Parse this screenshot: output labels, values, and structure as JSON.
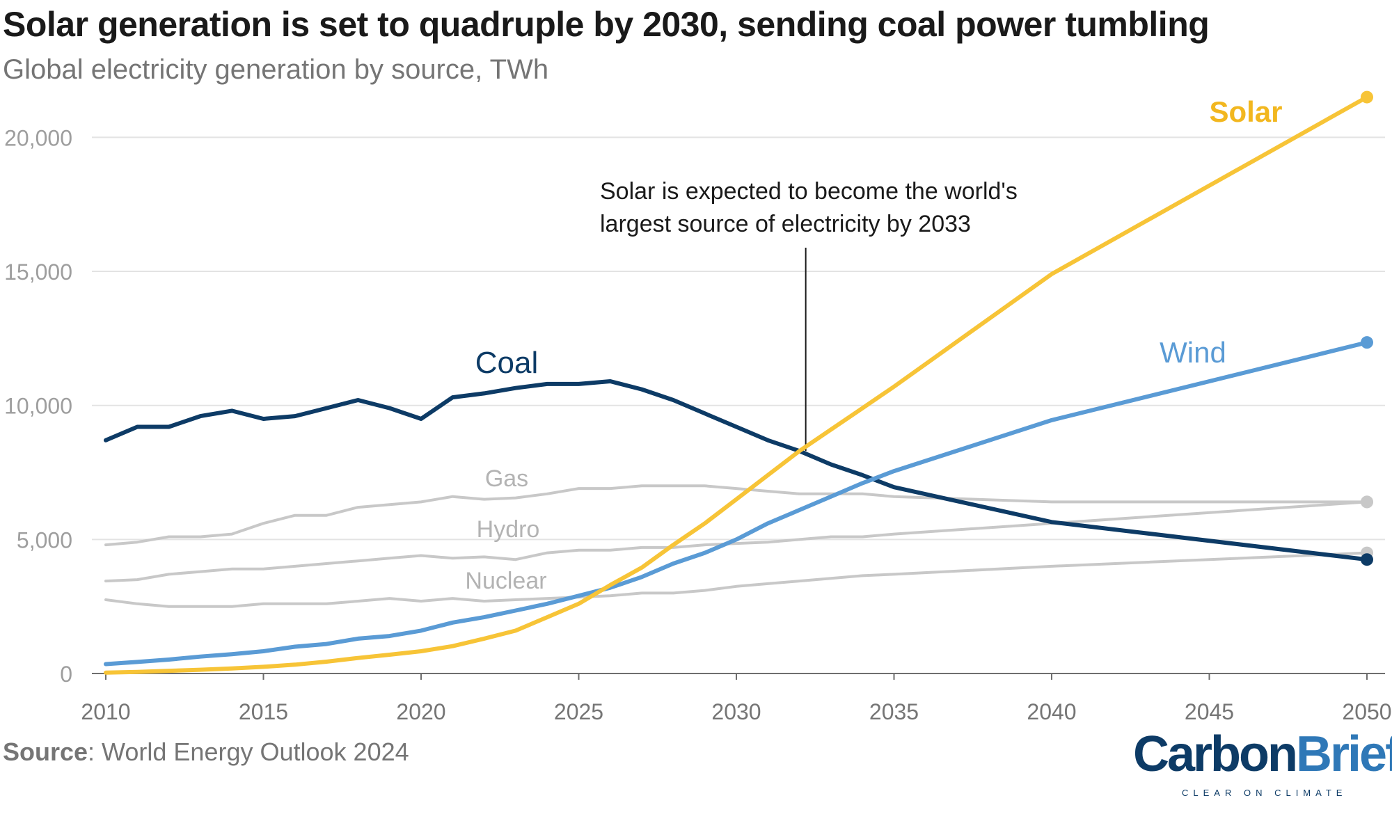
{
  "header": {
    "title": "Solar generation is set to quadruple by 2030, sending coal power tumbling",
    "subtitle": "Global electricity generation by source, TWh"
  },
  "footer": {
    "source_label": "Source",
    "source_text": ": World Energy Outlook 2024",
    "logo_part1": "Carbon",
    "logo_part2": "Brief",
    "logo_tagline": "CLEAR ON CLIMATE"
  },
  "chart_data": {
    "type": "line",
    "title": "Solar generation is set to quadruple by 2030, sending coal power tumbling",
    "subtitle": "Global electricity generation by source, TWh",
    "xlim": [
      2010,
      2050
    ],
    "ylim": [
      0,
      21500
    ],
    "grid": true,
    "x_ticks": [
      2010,
      2015,
      2020,
      2025,
      2030,
      2035,
      2040,
      2045,
      2050
    ],
    "x_tick_labels": [
      "2010",
      "2015",
      "2020",
      "2025",
      "2030",
      "2035",
      "2040",
      "2045",
      "2050"
    ],
    "y_ticks": [
      0,
      5000,
      10000,
      15000,
      20000
    ],
    "y_tick_labels": [
      "0",
      "5,000",
      "10,000",
      "15,000",
      "20,000"
    ],
    "annotation": {
      "lines": [
        "Solar is expected to become the world's",
        "largest source of electricity by 2033"
      ],
      "x": 2032.2,
      "y": 8300
    },
    "series": [
      {
        "name": "Gas",
        "color": "#c8c8c8",
        "label_color": "#b3b3b3",
        "x": [
          2010,
          2011,
          2012,
          2013,
          2014,
          2015,
          2016,
          2017,
          2018,
          2019,
          2020,
          2021,
          2022,
          2023,
          2024,
          2025,
          2026,
          2027,
          2028,
          2029,
          2030,
          2031,
          2032,
          2033,
          2034,
          2035,
          2040,
          2050
        ],
        "y": [
          4800,
          4900,
          5100,
          5100,
          5200,
          5600,
          5900,
          5900,
          6200,
          6300,
          6400,
          6600,
          6500,
          6550,
          6700,
          6900,
          6900,
          7000,
          7000,
          7000,
          6900,
          6800,
          6700,
          6700,
          6700,
          6600,
          6400,
          6400
        ]
      },
      {
        "name": "Hydro",
        "color": "#c8c8c8",
        "label_color": "#b3b3b3",
        "x": [
          2010,
          2011,
          2012,
          2013,
          2014,
          2015,
          2016,
          2017,
          2018,
          2019,
          2020,
          2021,
          2022,
          2023,
          2024,
          2025,
          2026,
          2027,
          2028,
          2029,
          2030,
          2031,
          2032,
          2033,
          2034,
          2035,
          2040,
          2050
        ],
        "y": [
          3450,
          3500,
          3700,
          3800,
          3900,
          3900,
          4000,
          4100,
          4200,
          4300,
          4400,
          4300,
          4350,
          4250,
          4500,
          4600,
          4600,
          4700,
          4700,
          4800,
          4850,
          4900,
          5000,
          5100,
          5100,
          5200,
          5600,
          6400
        ]
      },
      {
        "name": "Nuclear",
        "color": "#c8c8c8",
        "label_color": "#b3b3b3",
        "x": [
          2010,
          2011,
          2012,
          2013,
          2014,
          2015,
          2016,
          2017,
          2018,
          2019,
          2020,
          2021,
          2022,
          2023,
          2024,
          2025,
          2026,
          2027,
          2028,
          2029,
          2030,
          2031,
          2032,
          2033,
          2034,
          2035,
          2040,
          2050
        ],
        "y": [
          2750,
          2600,
          2500,
          2500,
          2500,
          2600,
          2600,
          2600,
          2700,
          2800,
          2700,
          2800,
          2700,
          2750,
          2800,
          2850,
          2900,
          3000,
          3000,
          3100,
          3250,
          3350,
          3450,
          3550,
          3650,
          3700,
          4000,
          4500
        ]
      },
      {
        "name": "Coal",
        "color": "#0d3b66",
        "label_color": "#0d3b66",
        "x": [
          2010,
          2011,
          2012,
          2013,
          2014,
          2015,
          2016,
          2017,
          2018,
          2019,
          2020,
          2021,
          2022,
          2023,
          2024,
          2025,
          2026,
          2027,
          2028,
          2029,
          2030,
          2031,
          2032,
          2033,
          2034,
          2035,
          2040,
          2050
        ],
        "y": [
          8700,
          9200,
          9200,
          9600,
          9800,
          9500,
          9600,
          9900,
          10200,
          9900,
          9500,
          10300,
          10450,
          10650,
          10800,
          10800,
          10900,
          10600,
          10200,
          9700,
          9200,
          8700,
          8300,
          7800,
          7400,
          6950,
          5650,
          4250
        ]
      },
      {
        "name": "Wind",
        "color": "#5a9bd5",
        "label_color": "#5a9bd5",
        "x": [
          2010,
          2011,
          2012,
          2013,
          2014,
          2015,
          2016,
          2017,
          2018,
          2019,
          2020,
          2021,
          2022,
          2023,
          2024,
          2025,
          2026,
          2027,
          2028,
          2029,
          2030,
          2031,
          2032,
          2033,
          2034,
          2035,
          2040,
          2050
        ],
        "y": [
          350,
          430,
          520,
          630,
          720,
          830,
          1000,
          1100,
          1300,
          1400,
          1600,
          1900,
          2100,
          2350,
          2600,
          2900,
          3200,
          3600,
          4100,
          4500,
          5000,
          5600,
          6100,
          6600,
          7100,
          7550,
          9450,
          12350
        ]
      },
      {
        "name": "Solar",
        "color": "#f7c437",
        "label_color": "#f2b71f",
        "x": [
          2010,
          2011,
          2012,
          2013,
          2014,
          2015,
          2016,
          2017,
          2018,
          2019,
          2020,
          2021,
          2022,
          2023,
          2024,
          2025,
          2026,
          2027,
          2028,
          2029,
          2030,
          2031,
          2032,
          2033,
          2034,
          2035,
          2040,
          2050
        ],
        "y": [
          30,
          60,
          100,
          140,
          190,
          250,
          330,
          440,
          580,
          700,
          830,
          1020,
          1300,
          1600,
          2100,
          2600,
          3300,
          3950,
          4800,
          5600,
          6500,
          7400,
          8300,
          9100,
          9900,
          10700,
          14900,
          21500
        ]
      }
    ]
  }
}
